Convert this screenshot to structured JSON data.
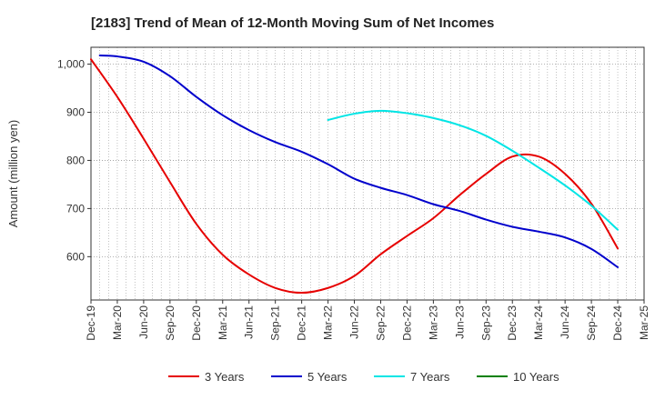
{
  "chart_data": {
    "type": "line",
    "title": "[2183]  Trend of Mean of 12-Month Moving Sum of Net Incomes",
    "ylabel": "Amount (million yen)",
    "xlabel": "",
    "ylim": [
      510,
      1035
    ],
    "yticks": [
      600,
      700,
      800,
      900,
      1000
    ],
    "ytick_labels": [
      "600",
      "700",
      "800",
      "900",
      "1,000"
    ],
    "xlim": [
      "Dec-19",
      "Mar-25"
    ],
    "x_tick_labels": [
      "Dec-19",
      "Mar-20",
      "Jun-20",
      "Sep-20",
      "Dec-20",
      "Mar-21",
      "Jun-21",
      "Sep-21",
      "Dec-21",
      "Mar-22",
      "Jun-22",
      "Sep-22",
      "Dec-22",
      "Mar-23",
      "Jun-23",
      "Sep-23",
      "Dec-23",
      "Mar-24",
      "Jun-24",
      "Sep-24",
      "Dec-24",
      "Mar-25"
    ],
    "grid": true,
    "legend_position": "bottom",
    "series": [
      {
        "name": "3 Years",
        "color": "#e60000",
        "x": [
          "Dec-19",
          "Mar-20",
          "Jun-20",
          "Sep-20",
          "Dec-20",
          "Mar-21",
          "Jun-21",
          "Sep-21",
          "Dec-21",
          "Mar-22",
          "Jun-22",
          "Sep-22",
          "Dec-22",
          "Mar-23",
          "Jun-23",
          "Sep-23",
          "Dec-23",
          "Mar-24",
          "Jun-24",
          "Sep-24",
          "Dec-24"
        ],
        "values": [
          1010,
          932,
          845,
          755,
          668,
          604,
          563,
          535,
          525,
          535,
          560,
          605,
          643,
          680,
          728,
          772,
          808,
          808,
          772,
          710,
          617
        ]
      },
      {
        "name": "5 Years",
        "color": "#0000cc",
        "x": [
          "Jan-20",
          "Mar-20",
          "Jun-20",
          "Sep-20",
          "Dec-20",
          "Mar-21",
          "Jun-21",
          "Sep-21",
          "Dec-21",
          "Mar-22",
          "Jun-22",
          "Sep-22",
          "Dec-22",
          "Mar-23",
          "Jun-23",
          "Sep-23",
          "Dec-23",
          "Mar-24",
          "Jun-24",
          "Sep-24",
          "Dec-24"
        ],
        "values": [
          1018,
          1016,
          1005,
          975,
          932,
          894,
          863,
          838,
          818,
          792,
          762,
          743,
          728,
          709,
          695,
          677,
          662,
          652,
          640,
          616,
          578
        ]
      },
      {
        "name": "7 Years",
        "color": "#00e5e5",
        "x": [
          "Mar-22",
          "Jun-22",
          "Sep-22",
          "Dec-22",
          "Mar-23",
          "Jun-23",
          "Sep-23",
          "Dec-23",
          "Mar-24",
          "Jun-24",
          "Sep-24",
          "Dec-24"
        ],
        "values": [
          884,
          897,
          903,
          898,
          888,
          873,
          851,
          820,
          785,
          748,
          706,
          656
        ]
      },
      {
        "name": "10 Years",
        "color": "#008000",
        "x": [],
        "values": []
      }
    ]
  }
}
